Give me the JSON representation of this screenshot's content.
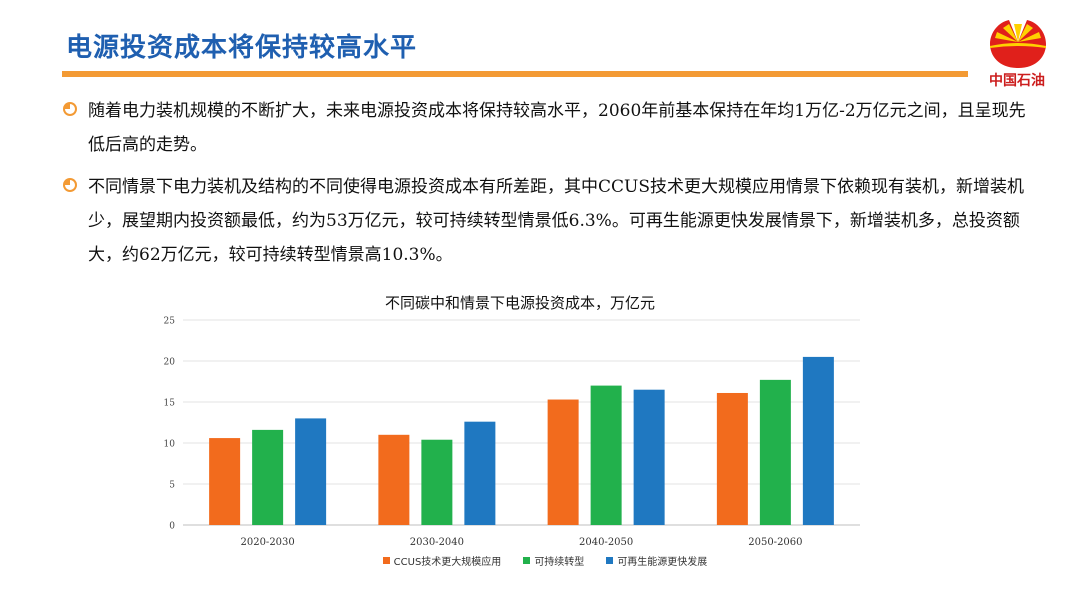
{
  "header": {
    "title": "电源投资成本将保持较高水平",
    "logo_text": "中国石油",
    "accent_color": "#f39a34",
    "title_color": "#1f5fb0"
  },
  "bullets": [
    {
      "icon": "orange-circle-bullet-icon",
      "text": "随着电力装机规模的不断扩大，未来电源投资成本将保持较高水平，2060年前基本保持在年均1万亿-2万亿元之间，且呈现先低后高的走势。"
    },
    {
      "icon": "orange-circle-bullet-icon",
      "text": "不同情景下电力装机及结构的不同使得电源投资成本有所差距，其中CCUS技术更大规模应用情景下依赖现有装机，新增装机少，展望期内投资额最低，约为53万亿元，较可持续转型情景低6.3%。可再生能源更快发展情景下，新增装机多，总投资额大，约62万亿元，较可持续转型情景高10.3%。"
    }
  ],
  "chart_data": {
    "type": "bar",
    "title": "不同碳中和情景下电源投资成本，万亿元",
    "categories": [
      "2020-2030",
      "2030-2040",
      "2040-2050",
      "2050-2060"
    ],
    "series": [
      {
        "name": "CCUS技术更大规模应用",
        "color": "#f26b1d",
        "values": [
          10.6,
          11.0,
          15.3,
          16.1
        ]
      },
      {
        "name": "可持续转型",
        "color": "#22b14c",
        "values": [
          11.6,
          10.4,
          17.0,
          17.7
        ]
      },
      {
        "name": "可再生能源更快发展",
        "color": "#1f78c1",
        "values": [
          13.0,
          12.6,
          16.5,
          20.5
        ]
      }
    ],
    "ylim": [
      0,
      25
    ],
    "yticks": [
      0,
      5,
      10,
      15,
      20,
      25
    ],
    "grid": true,
    "legend": "bottom"
  }
}
